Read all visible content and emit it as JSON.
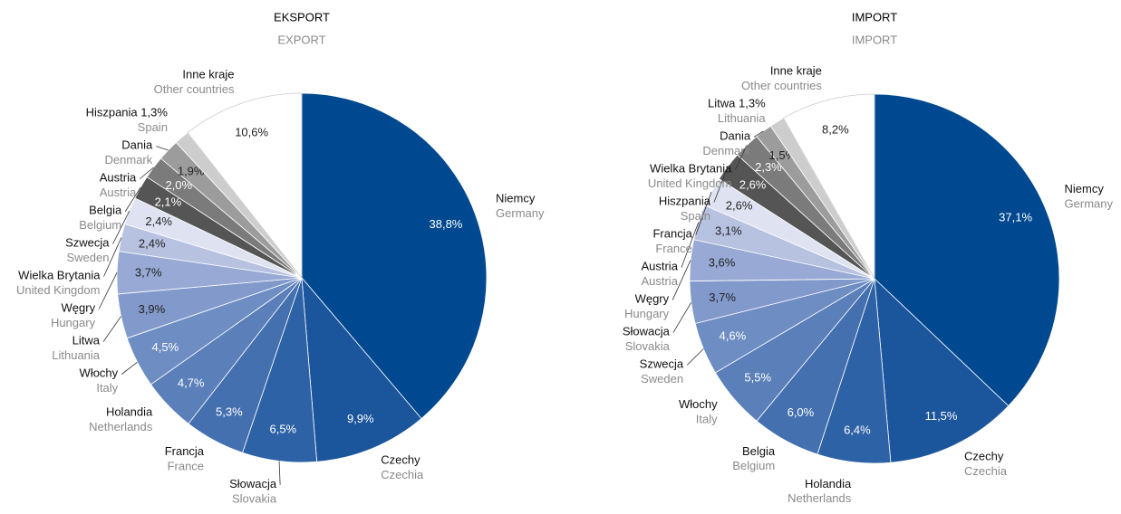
{
  "chart_data": [
    {
      "type": "pie",
      "title": "EKSPORT",
      "subtitle": "EXPORT",
      "categories": [
        "Niemcy",
        "Czechy",
        "Słowacja",
        "Francja",
        "Holandia",
        "Włochy",
        "Litwa",
        "Węgry",
        "Wielka Brytania",
        "Szwecja",
        "Belgia",
        "Austria",
        "Dania",
        "Hiszpania",
        "Inne kraje"
      ],
      "categories_en": [
        "Germany",
        "Czechia",
        "Slovakia",
        "France",
        "Netherlands",
        "Italy",
        "Lithuania",
        "Hungary",
        "United Kingdom",
        "Sweden",
        "Belgium",
        "Austria",
        "Denmark",
        "Spain",
        "Other countries"
      ],
      "values": [
        38.8,
        9.9,
        6.5,
        5.3,
        4.7,
        4.5,
        3.9,
        3.7,
        2.4,
        2.4,
        2.1,
        2.0,
        1.9,
        1.3,
        10.6
      ],
      "value_labels": [
        "38,8%",
        "9,9%",
        "6,5%",
        "5,3%",
        "4,7%",
        "4,5%",
        "3,9%",
        "3,7%",
        "2,4%",
        "2,4%",
        "2,1%",
        "2,0%",
        "1,9%",
        "1,3%",
        "10,6%"
      ],
      "colors": [
        "#004990",
        "#1b559c",
        "#2e62a6",
        "#4470b0",
        "#5a7fb9",
        "#6e8ec3",
        "#8299cb",
        "#97a9d4",
        "#b7c1e0",
        "#dfe3f1",
        "#555555",
        "#7b7b7b",
        "#9c9c9c",
        "#cdcdcd",
        "#ffffff"
      ]
    },
    {
      "type": "pie",
      "title": "IMPORT",
      "subtitle": "IMPORT",
      "categories": [
        "Niemcy",
        "Czechy",
        "Holandia",
        "Belgia",
        "Włochy",
        "Szwecja",
        "Słowacja",
        "Węgry",
        "Austria",
        "Francja",
        "Hiszpania",
        "Wielka Brytania",
        "Dania",
        "Litwa",
        "Inne kraje"
      ],
      "categories_en": [
        "Germany",
        "Czechia",
        "Netherlands",
        "Belgium",
        "Italy",
        "Sweden",
        "Slovakia",
        "Hungary",
        "Austria",
        "France",
        "Spain",
        "United Kingdom",
        "Denmark",
        "Lithuania",
        "Other countries"
      ],
      "values": [
        37.1,
        11.5,
        6.4,
        6.0,
        5.5,
        4.6,
        3.7,
        3.6,
        3.1,
        2.6,
        2.6,
        2.3,
        1.5,
        1.3,
        8.2
      ],
      "value_labels": [
        "37,1%",
        "11,5%",
        "6,4%",
        "6,0%",
        "5,5%",
        "4,6%",
        "3,7%",
        "3,6%",
        "3,1%",
        "2,6%",
        "2,6%",
        "2,3%",
        "1,5%",
        "1,3%",
        "8,2%"
      ],
      "colors": [
        "#004990",
        "#1b559c",
        "#2e62a6",
        "#4470b0",
        "#5a7fb9",
        "#6e8ec3",
        "#8299cb",
        "#97a9d4",
        "#b7c1e0",
        "#dfe3f1",
        "#555555",
        "#7b7b7b",
        "#9c9c9c",
        "#cdcdcd",
        "#ffffff"
      ]
    }
  ]
}
